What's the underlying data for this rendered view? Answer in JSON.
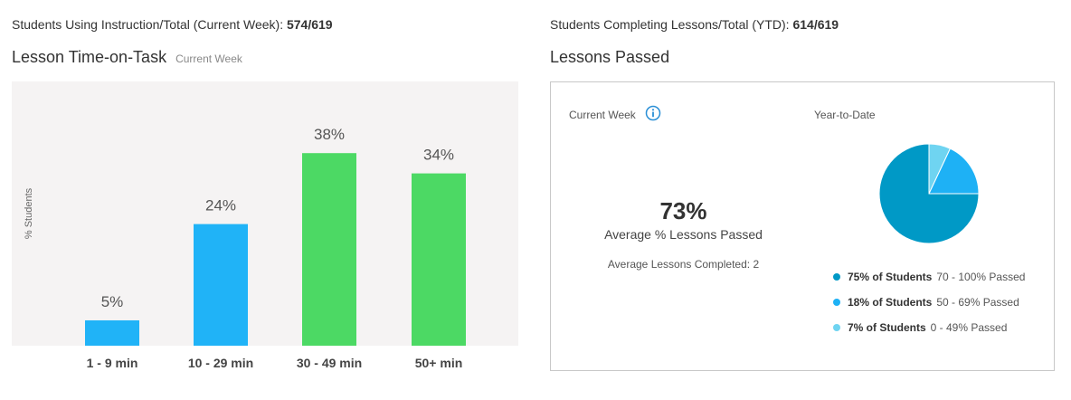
{
  "header_left": {
    "label": "Students Using Instruction/Total (Current Week):",
    "value": "574/619"
  },
  "header_right": {
    "label": "Students Completing Lessons/Total (YTD):",
    "value": "614/619"
  },
  "time_on_task": {
    "title": "Lesson Time-on-Task",
    "subtitle": "Current Week"
  },
  "lessons_passed": {
    "title": "Lessons Passed",
    "current_week_label": "Current Week",
    "ytd_label": "Year-to-Date",
    "avg_percent": "73%",
    "avg_percent_label": "Average % Lessons Passed",
    "avg_completed_label": "Average Lessons Completed:",
    "avg_completed_value": "2",
    "legend": [
      {
        "strong": "75% of Students",
        "range": "70 - 100% Passed",
        "color": "#0099c6"
      },
      {
        "strong": "18% of Students",
        "range": "50 - 69% Passed",
        "color": "#1eb1f5"
      },
      {
        "strong": "7% of Students",
        "range": "0 - 49% Passed",
        "color": "#6fd4f1"
      }
    ]
  },
  "colors": {
    "blue_bar": "#20b3f7",
    "green_bar": "#4cd964",
    "highlight_label": "#4cd964",
    "info_icon": "#2a8fd6"
  },
  "chart_data": [
    {
      "type": "bar",
      "title": "Lesson Time-on-Task",
      "subtitle": "Current Week",
      "ylabel": "% Students",
      "categories": [
        "1 - 9 min",
        "10 - 29 min",
        "30 - 49 min",
        "50+ min"
      ],
      "values": [
        5,
        24,
        38,
        34
      ],
      "value_labels": [
        "5%",
        "24%",
        "38%",
        "34%"
      ],
      "bar_colors": [
        "#20b3f7",
        "#20b3f7",
        "#4cd964",
        "#4cd964"
      ],
      "highlighted_category": "30 - 49 min",
      "ylim": [
        0,
        50
      ],
      "grid": false
    },
    {
      "type": "pie",
      "title": "Year-to-Date",
      "labels": [
        "70 - 100% Passed",
        "50 - 69% Passed",
        "0 - 49% Passed"
      ],
      "values": [
        75,
        18,
        7
      ],
      "colors": [
        "#0099c6",
        "#1eb1f5",
        "#6fd4f1"
      ],
      "legend_position": "bottom"
    }
  ]
}
